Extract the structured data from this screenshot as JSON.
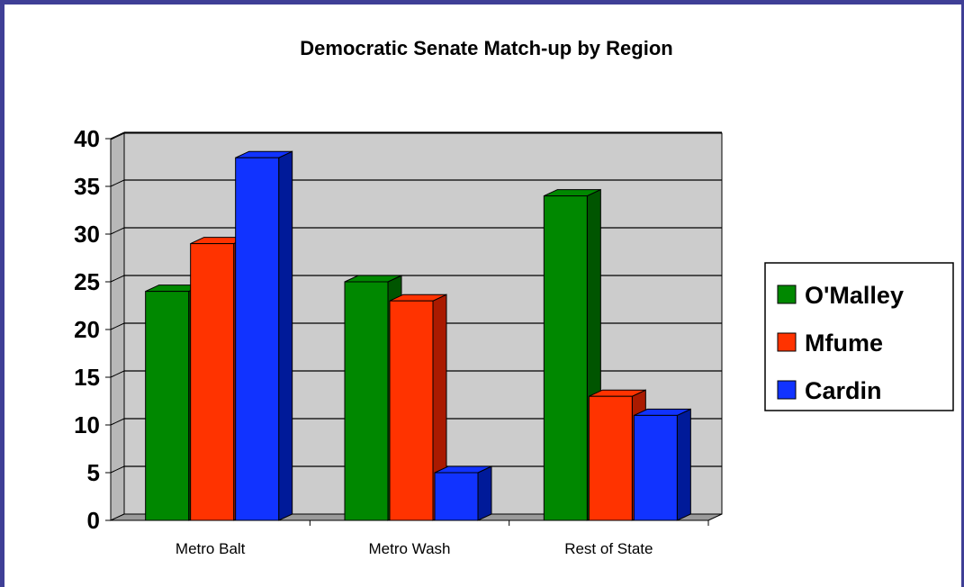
{
  "chart_data": {
    "type": "bar",
    "title": "Democratic Senate Match-up by Region",
    "categories": [
      "Metro Balt",
      "Metro Wash",
      "Rest of State"
    ],
    "series": [
      {
        "name": "O'Malley",
        "values": [
          24,
          25,
          34
        ],
        "color": "#008800",
        "side": "#005500"
      },
      {
        "name": "Mfume",
        "values": [
          29,
          23,
          13
        ],
        "color": "#ff3300",
        "side": "#aa1a00"
      },
      {
        "name": "Cardin",
        "values": [
          38,
          5,
          11
        ],
        "color": "#1133ff",
        "side": "#001a99"
      }
    ],
    "ylim": [
      0,
      40
    ],
    "yticks": [
      0,
      5,
      10,
      15,
      20,
      25,
      30,
      35,
      40
    ],
    "grid": true,
    "legend": "right",
    "three_d": true,
    "wall_color": "#cccccc"
  }
}
